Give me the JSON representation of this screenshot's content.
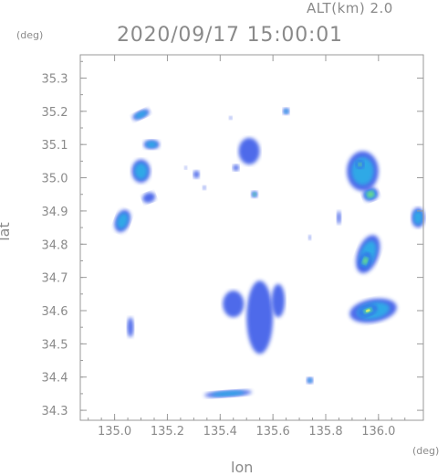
{
  "header": {
    "altitude": "ALT(km) 2.0",
    "timestamp": "2020/09/17 15:00:01"
  },
  "axes": {
    "x_label": "lon",
    "y_label": "lat",
    "x_unit": "(deg)",
    "y_unit": "(deg)",
    "x_range": [
      134.87,
      136.17
    ],
    "y_range": [
      34.27,
      35.37
    ],
    "x_ticks": [
      135.0,
      135.2,
      135.4,
      135.6,
      135.8,
      136.0
    ],
    "x_tick_labels": [
      "135.0",
      "135.2",
      "135.4",
      "135.6",
      "135.8",
      "136.0"
    ],
    "y_ticks": [
      34.3,
      34.4,
      34.5,
      34.6,
      34.7,
      34.8,
      34.9,
      35.0,
      35.1,
      35.2,
      35.3
    ],
    "y_tick_labels": [
      "34.3",
      "34.4",
      "34.5",
      "34.6",
      "34.7",
      "34.8",
      "34.9",
      "35.0",
      "35.1",
      "35.2",
      "35.3"
    ]
  },
  "colors": {
    "frame": "#9a9a9a",
    "text": "#8a8a8a",
    "echo_weak": "#3a5ae8",
    "echo_mid": "#2ab4e6",
    "echo_strong": "#7de870",
    "echo_core": "#d8f070"
  },
  "echo_cells": [
    {
      "lon": 135.1,
      "lat": 35.19,
      "rx": 0.035,
      "ry": 0.012,
      "level": "mid",
      "rot": -25
    },
    {
      "lon": 135.14,
      "lat": 35.1,
      "rx": 0.03,
      "ry": 0.014,
      "level": "mid",
      "rot": 0
    },
    {
      "lon": 135.1,
      "lat": 35.02,
      "rx": 0.035,
      "ry": 0.035,
      "level": "mid",
      "rot": 0
    },
    {
      "lon": 135.13,
      "lat": 34.94,
      "rx": 0.025,
      "ry": 0.015,
      "level": "weak",
      "rot": -20
    },
    {
      "lon": 135.03,
      "lat": 34.87,
      "rx": 0.028,
      "ry": 0.035,
      "level": "mid",
      "rot": 20
    },
    {
      "lon": 135.06,
      "lat": 34.55,
      "rx": 0.012,
      "ry": 0.03,
      "level": "weak",
      "rot": 0
    },
    {
      "lon": 135.31,
      "lat": 35.01,
      "rx": 0.012,
      "ry": 0.012,
      "level": "weak",
      "rot": 0
    },
    {
      "lon": 135.51,
      "lat": 35.08,
      "rx": 0.04,
      "ry": 0.04,
      "level": "weak",
      "rot": 0
    },
    {
      "lon": 135.53,
      "lat": 34.95,
      "rx": 0.012,
      "ry": 0.01,
      "level": "strong",
      "rot": 0
    },
    {
      "lon": 135.46,
      "lat": 35.03,
      "rx": 0.012,
      "ry": 0.01,
      "level": "weak",
      "rot": 0
    },
    {
      "lon": 135.65,
      "lat": 35.2,
      "rx": 0.012,
      "ry": 0.01,
      "level": "mid",
      "rot": 0
    },
    {
      "lon": 135.55,
      "lat": 34.58,
      "rx": 0.05,
      "ry": 0.11,
      "level": "weak",
      "rot": 0
    },
    {
      "lon": 135.45,
      "lat": 34.62,
      "rx": 0.04,
      "ry": 0.04,
      "level": "weak",
      "rot": 0
    },
    {
      "lon": 135.62,
      "lat": 34.63,
      "rx": 0.025,
      "ry": 0.05,
      "level": "weak",
      "rot": 0
    },
    {
      "lon": 135.74,
      "lat": 34.39,
      "rx": 0.012,
      "ry": 0.01,
      "level": "mid",
      "rot": 0
    },
    {
      "lon": 135.43,
      "lat": 34.35,
      "rx": 0.09,
      "ry": 0.01,
      "level": "mid",
      "rot": -4
    },
    {
      "lon": 135.94,
      "lat": 35.02,
      "rx": 0.06,
      "ry": 0.06,
      "level": "mid",
      "rot": 0
    },
    {
      "lon": 135.97,
      "lat": 34.95,
      "rx": 0.03,
      "ry": 0.02,
      "level": "strong",
      "rot": -20
    },
    {
      "lon": 135.93,
      "lat": 35.04,
      "rx": 0.015,
      "ry": 0.012,
      "level": "strong",
      "rot": 0
    },
    {
      "lon": 135.96,
      "lat": 34.77,
      "rx": 0.04,
      "ry": 0.06,
      "level": "mid",
      "rot": 20
    },
    {
      "lon": 135.95,
      "lat": 34.75,
      "rx": 0.02,
      "ry": 0.025,
      "level": "strong",
      "rot": 20
    },
    {
      "lon": 135.98,
      "lat": 34.6,
      "rx": 0.09,
      "ry": 0.035,
      "level": "mid",
      "rot": -10
    },
    {
      "lon": 135.96,
      "lat": 34.6,
      "rx": 0.035,
      "ry": 0.015,
      "level": "core",
      "rot": -20
    },
    {
      "lon": 136.15,
      "lat": 34.88,
      "rx": 0.025,
      "ry": 0.03,
      "level": "mid",
      "rot": 0
    },
    {
      "lon": 135.85,
      "lat": 34.88,
      "rx": 0.008,
      "ry": 0.02,
      "level": "weak",
      "rot": 0
    },
    {
      "lon": 135.34,
      "lat": 34.97,
      "rx": 0.006,
      "ry": 0.006,
      "level": "weak",
      "rot": 0
    },
    {
      "lon": 135.44,
      "lat": 35.18,
      "rx": 0.006,
      "ry": 0.005,
      "level": "weak",
      "rot": 0
    },
    {
      "lon": 135.27,
      "lat": 35.03,
      "rx": 0.005,
      "ry": 0.005,
      "level": "weak",
      "rot": 0
    },
    {
      "lon": 135.74,
      "lat": 34.82,
      "rx": 0.005,
      "ry": 0.008,
      "level": "weak",
      "rot": 0
    }
  ]
}
